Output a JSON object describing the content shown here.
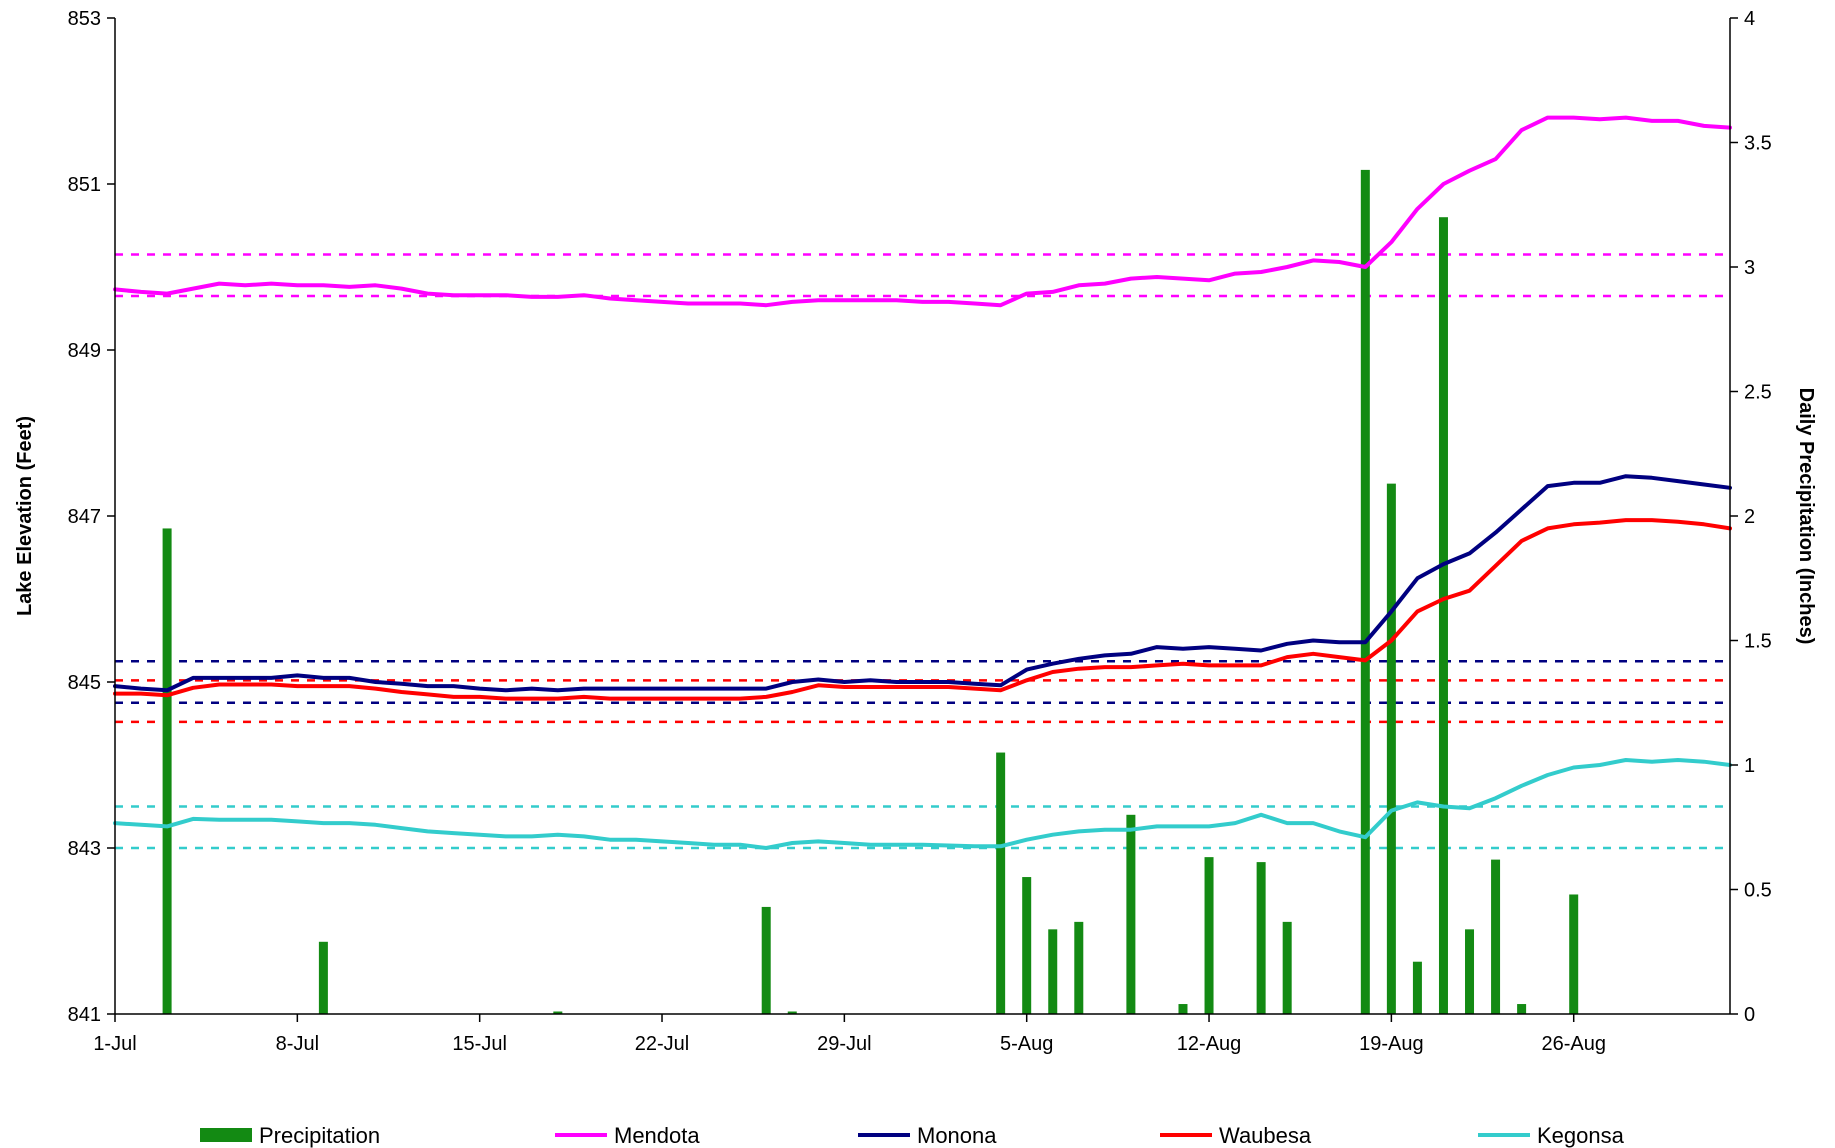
{
  "chart_data": {
    "type": "bar+line",
    "title": "",
    "x_ticks": [
      "1-Jul",
      "8-Jul",
      "15-Jul",
      "22-Jul",
      "29-Jul",
      "5-Aug",
      "12-Aug",
      "19-Aug",
      "26-Aug"
    ],
    "y_left": {
      "label": "Lake Elevation (Feet)",
      "range": [
        841,
        853
      ],
      "ticks": [
        "841",
        "843",
        "845",
        "847",
        "849",
        "851",
        "853"
      ]
    },
    "y_right": {
      "label": "Daily Precipitation (Inches)",
      "range": [
        0,
        4
      ],
      "ticks": [
        "0",
        "0.5",
        "1",
        "1.5",
        "2",
        "2.5",
        "3",
        "3.5",
        "4"
      ]
    },
    "days": 62,
    "precipitation": {
      "name": "Precipitation",
      "color": "#138A13",
      "values": [
        {
          "day": 2,
          "value": 1.95
        },
        {
          "day": 8,
          "value": 0.29
        },
        {
          "day": 17,
          "value": 0.01
        },
        {
          "day": 25,
          "value": 0.43
        },
        {
          "day": 26,
          "value": 0.01
        },
        {
          "day": 34,
          "value": 1.05
        },
        {
          "day": 35,
          "value": 0.55
        },
        {
          "day": 36,
          "value": 0.34
        },
        {
          "day": 37,
          "value": 0.37
        },
        {
          "day": 39,
          "value": 0.8
        },
        {
          "day": 41,
          "value": 0.04
        },
        {
          "day": 42,
          "value": 0.63
        },
        {
          "day": 44,
          "value": 0.61
        },
        {
          "day": 45,
          "value": 0.37
        },
        {
          "day": 48,
          "value": 3.39
        },
        {
          "day": 49,
          "value": 2.13
        },
        {
          "day": 50,
          "value": 0.21
        },
        {
          "day": 51,
          "value": 3.2
        },
        {
          "day": 52,
          "value": 0.34
        },
        {
          "day": 53,
          "value": 0.62
        },
        {
          "day": 54,
          "value": 0.04
        },
        {
          "day": 56,
          "value": 0.48
        }
      ]
    },
    "series": [
      {
        "name": "Mendota",
        "color": "#FF00FF",
        "limits": [
          850.15,
          849.65
        ],
        "values": [
          849.73,
          849.7,
          849.68,
          849.74,
          849.8,
          849.78,
          849.8,
          849.78,
          849.78,
          849.76,
          849.78,
          849.74,
          849.68,
          849.66,
          849.66,
          849.66,
          849.64,
          849.64,
          849.66,
          849.62,
          849.6,
          849.58,
          849.56,
          849.56,
          849.56,
          849.54,
          849.58,
          849.6,
          849.6,
          849.6,
          849.6,
          849.58,
          849.58,
          849.56,
          849.54,
          849.68,
          849.7,
          849.78,
          849.8,
          849.86,
          849.88,
          849.86,
          849.84,
          849.92,
          849.94,
          850.0,
          850.08,
          850.06,
          850.0,
          850.3,
          850.7,
          851.0,
          851.16,
          851.3,
          851.65,
          851.8,
          851.8,
          851.78,
          851.8,
          851.76,
          851.76,
          851.7,
          851.68
        ]
      },
      {
        "name": "Monona",
        "color": "#000080",
        "limits": [
          845.25,
          844.75
        ],
        "values": [
          844.95,
          844.92,
          844.9,
          845.05,
          845.05,
          845.05,
          845.05,
          845.08,
          845.05,
          845.05,
          845.0,
          844.98,
          844.95,
          844.95,
          844.92,
          844.9,
          844.92,
          844.9,
          844.92,
          844.92,
          844.92,
          844.92,
          844.92,
          844.92,
          844.92,
          844.92,
          845.0,
          845.03,
          845.0,
          845.02,
          845.0,
          845.0,
          845.0,
          844.98,
          844.96,
          845.15,
          845.22,
          845.28,
          845.32,
          845.34,
          845.42,
          845.4,
          845.42,
          845.4,
          845.38,
          845.46,
          845.5,
          845.48,
          845.48,
          845.85,
          846.25,
          846.42,
          846.55,
          846.8,
          847.08,
          847.36,
          847.4,
          847.4,
          847.48,
          847.46,
          847.42,
          847.38,
          847.34
        ]
      },
      {
        "name": "Waubesa",
        "color": "#FF0000",
        "limits": [
          845.02,
          844.52
        ],
        "values": [
          844.86,
          844.86,
          844.84,
          844.93,
          844.97,
          844.97,
          844.97,
          844.95,
          844.95,
          844.95,
          844.92,
          844.88,
          844.85,
          844.82,
          844.82,
          844.8,
          844.8,
          844.8,
          844.82,
          844.8,
          844.8,
          844.8,
          844.8,
          844.8,
          844.8,
          844.82,
          844.88,
          844.96,
          844.94,
          844.94,
          844.94,
          844.94,
          844.94,
          844.92,
          844.9,
          845.02,
          845.12,
          845.16,
          845.18,
          845.18,
          845.2,
          845.22,
          845.2,
          845.2,
          845.2,
          845.3,
          845.34,
          845.3,
          845.26,
          845.5,
          845.85,
          846.0,
          846.1,
          846.4,
          846.7,
          846.85,
          846.9,
          846.92,
          846.95,
          846.95,
          846.93,
          846.9,
          846.85
        ]
      },
      {
        "name": "Kegonsa",
        "color": "#33CCCC",
        "limits": [
          843.5,
          843.0
        ],
        "values": [
          843.3,
          843.28,
          843.26,
          843.35,
          843.34,
          843.34,
          843.34,
          843.32,
          843.3,
          843.3,
          843.28,
          843.24,
          843.2,
          843.18,
          843.16,
          843.14,
          843.14,
          843.16,
          843.14,
          843.1,
          843.1,
          843.08,
          843.06,
          843.04,
          843.04,
          843.0,
          843.06,
          843.08,
          843.06,
          843.04,
          843.04,
          843.04,
          843.03,
          843.02,
          843.02,
          843.1,
          843.16,
          843.2,
          843.22,
          843.22,
          843.26,
          843.26,
          843.26,
          843.3,
          843.4,
          843.3,
          843.3,
          843.2,
          843.13,
          843.45,
          843.55,
          843.5,
          843.48,
          843.6,
          843.75,
          843.88,
          843.97,
          844.0,
          844.06,
          844.04,
          844.06,
          844.04,
          844.0
        ]
      }
    ],
    "legend": [
      "Precipitation",
      "Mendota",
      "Monona",
      "Waubesa",
      "Kegonsa"
    ],
    "legend_position": "bottom"
  }
}
